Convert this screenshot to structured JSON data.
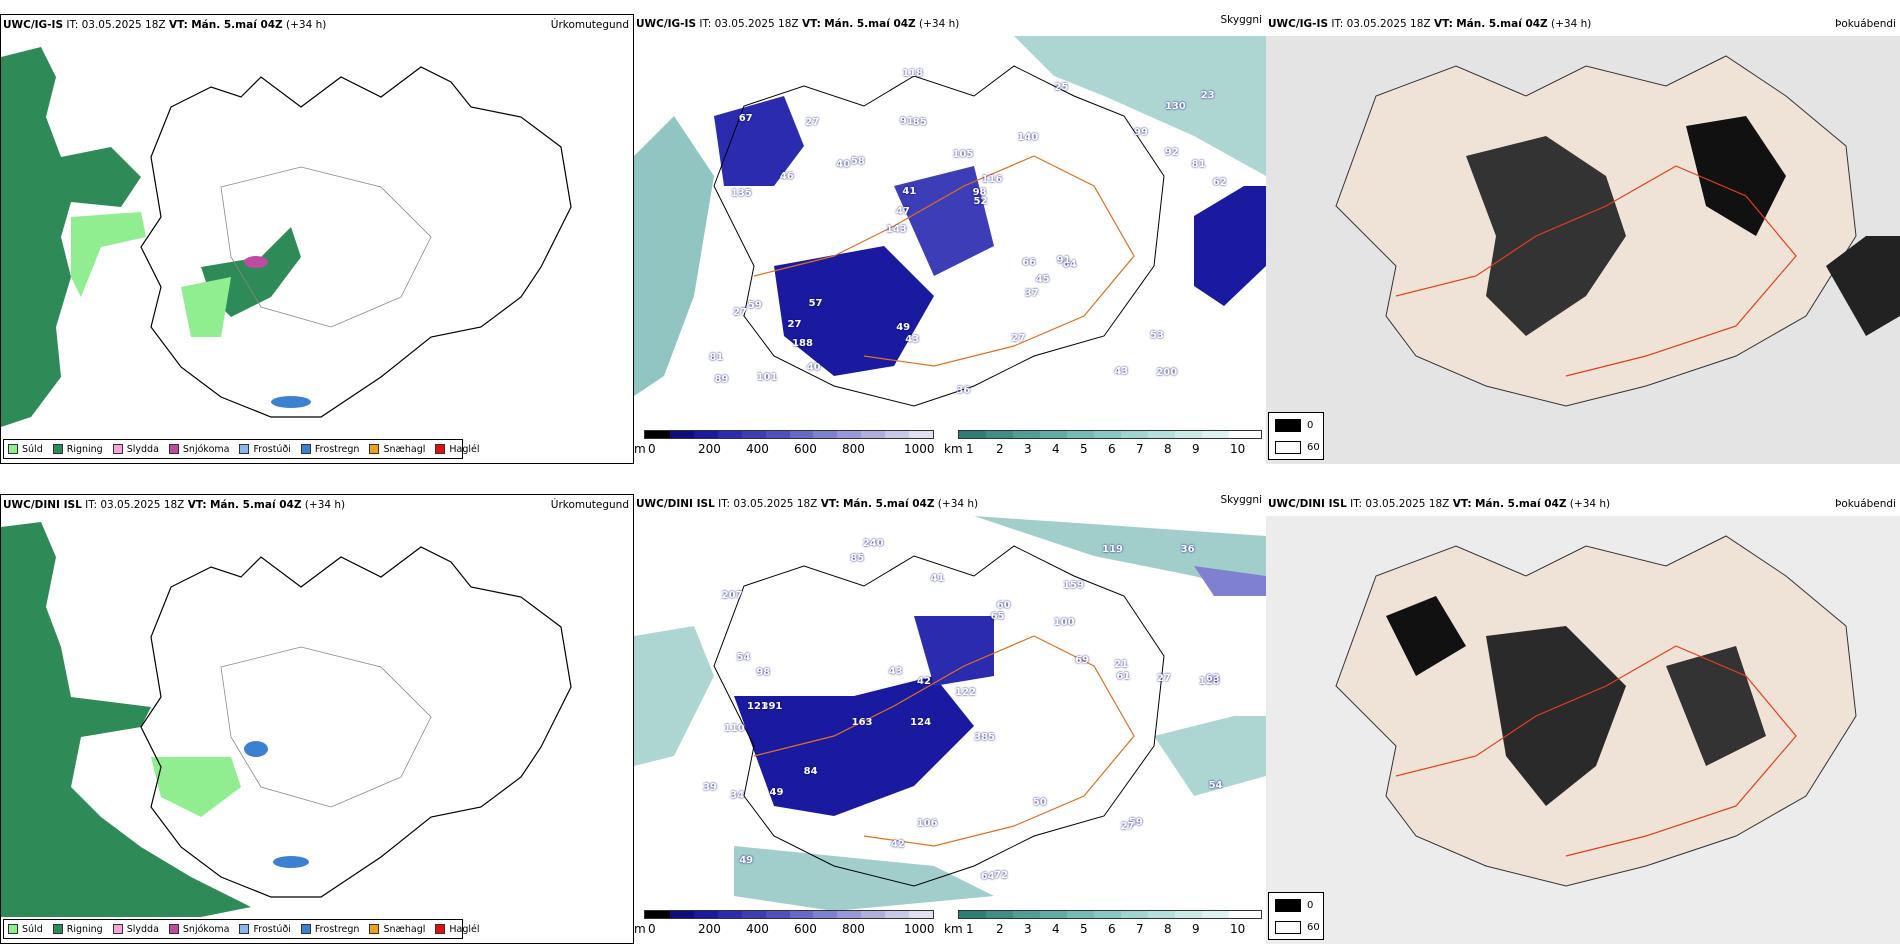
{
  "rows": [
    {
      "model": "UWC/IG-IS",
      "info": "IT: 03.05.2025 18Z",
      "vt_label": "VT:",
      "vt_value": "Mán. 5.maí 04Z",
      "lead": "(+34 h)",
      "cloud_numbers": [
        "200",
        "135",
        "130",
        "143",
        "140",
        "101",
        "91",
        "105",
        "59",
        "58",
        "81",
        "188",
        "85",
        "116",
        "64",
        "67",
        "118",
        "62",
        "66",
        "92",
        "47",
        "49",
        "41",
        "27",
        "25",
        "57",
        "43",
        "53",
        "91",
        "36",
        "40",
        "46",
        "37",
        "40",
        "81",
        "98",
        "89",
        "43",
        "52",
        "27",
        "99",
        "23",
        "45",
        "27",
        "27"
      ]
    },
    {
      "model": "UWC/DINI ISL",
      "info": "IT: 03.05.2025 18Z",
      "vt_label": "VT:",
      "vt_value": "Mán. 5.maí 04Z",
      "lead": "(+34 h)",
      "cloud_numbers": [
        "240",
        "159",
        "128",
        "124",
        "385",
        "391",
        "207",
        "100",
        "110",
        "65",
        "122",
        "49",
        "85",
        "163",
        "64",
        "72",
        "106",
        "119",
        "69",
        "84",
        "98",
        "121",
        "63",
        "27",
        "39",
        "54",
        "42",
        "61",
        "59",
        "34",
        "27",
        "60",
        "49",
        "43",
        "50",
        "54",
        "21",
        "42",
        "36",
        "41"
      ]
    }
  ],
  "panel_labels": {
    "precip": "Úrkomutegund",
    "cloud": "Skyggni",
    "fog": "Þokuábendi"
  },
  "precip_legend": [
    {
      "label": "Súld",
      "color": "#90ee90"
    },
    {
      "label": "Rigning",
      "color": "#2e8b57"
    },
    {
      "label": "Slydda",
      "color": "#f4a6d7"
    },
    {
      "label": "Snjókoma",
      "color": "#c04aa0"
    },
    {
      "label": "Frostúði",
      "color": "#87b9f0"
    },
    {
      "label": "Frostregn",
      "color": "#3d7fd0"
    },
    {
      "label": "Snæhagl",
      "color": "#f0a020"
    },
    {
      "label": "Haglél",
      "color": "#e01010"
    }
  ],
  "cloud_base_bar": {
    "unit": "m",
    "labels": [
      "0",
      "200",
      "400",
      "600",
      "800",
      "1000"
    ],
    "colors": [
      "#000000",
      "#0d0d80",
      "#1a1aa0",
      "#2b2bb0",
      "#3d3db8",
      "#5050c0",
      "#6868c8",
      "#8080d0",
      "#9898d8",
      "#b0b0e0",
      "#c8c8e8",
      "#e0e0f0"
    ]
  },
  "visibility_bar": {
    "unit": "km",
    "labels": [
      "1",
      "2",
      "3",
      "4",
      "5",
      "6",
      "7",
      "8",
      "9",
      "10"
    ],
    "colors": [
      "#2e7d76",
      "#3f8e87",
      "#519e97",
      "#63ada7",
      "#77bbb5",
      "#8ac8c3",
      "#9fd4cf",
      "#b5dfdb",
      "#cbe9e6",
      "#e0f2f0",
      "#ffffff"
    ]
  },
  "fog_legend": [
    {
      "label": "0",
      "color": "#000000"
    },
    {
      "label": "60",
      "color": "#ffffff"
    }
  ]
}
